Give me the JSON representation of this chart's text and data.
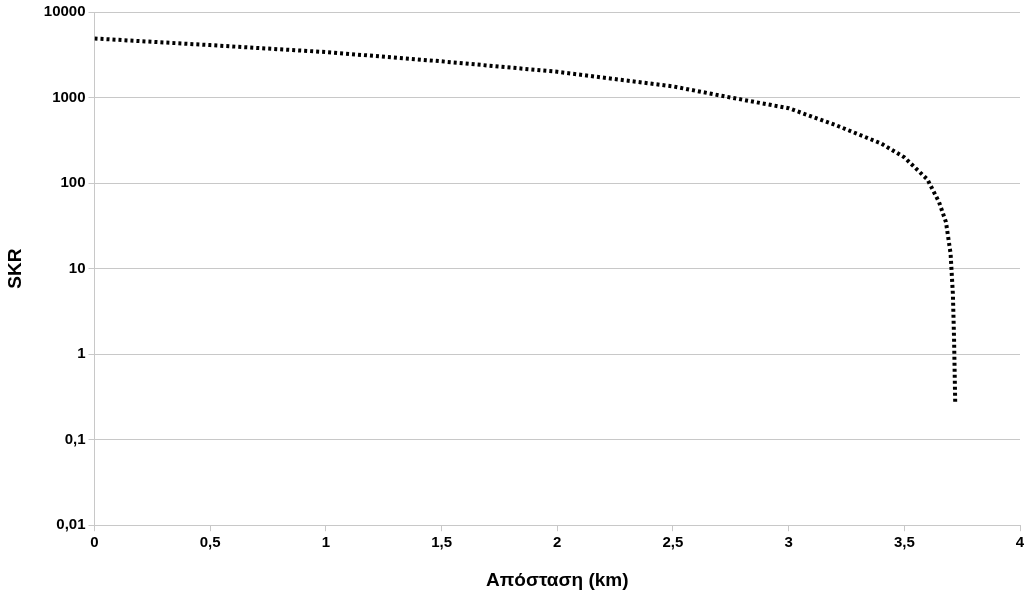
{
  "chart_data": {
    "type": "line",
    "xlabel": "Απόσταση (km)",
    "ylabel": "SKR",
    "x": [
      0,
      0.5,
      1,
      1.5,
      2,
      2.5,
      2.75,
      3,
      3.2,
      3.4,
      3.5,
      3.6,
      3.65,
      3.68,
      3.7,
      3.71,
      3.715,
      3.72
    ],
    "series": [
      {
        "color": "#000000",
        "values": [
          4900,
          4100,
          3400,
          2650,
          2000,
          1350,
          1000,
          750,
          480,
          290,
          200,
          110,
          60,
          35,
          15,
          5,
          1.5,
          0.27
        ]
      }
    ],
    "xlim": [
      0,
      4
    ],
    "xticks": [
      0,
      {
        "value": 0.5,
        "label": "0,5"
      },
      1,
      {
        "value": 1.5,
        "label": "1,5"
      },
      2,
      {
        "value": 2.5,
        "label": "2,5"
      },
      3,
      {
        "value": 3.5,
        "label": "3,5"
      },
      4
    ],
    "ylim": [
      0.01,
      10000
    ],
    "yticks": [
      {
        "value": 0.01,
        "label": "0,01"
      },
      {
        "value": 0.1,
        "label": "0,1"
      },
      1,
      10,
      100,
      1000,
      10000
    ],
    "log": "y",
    "grid": "y",
    "legend": false,
    "marker": "none",
    "line_style": "dotted"
  }
}
